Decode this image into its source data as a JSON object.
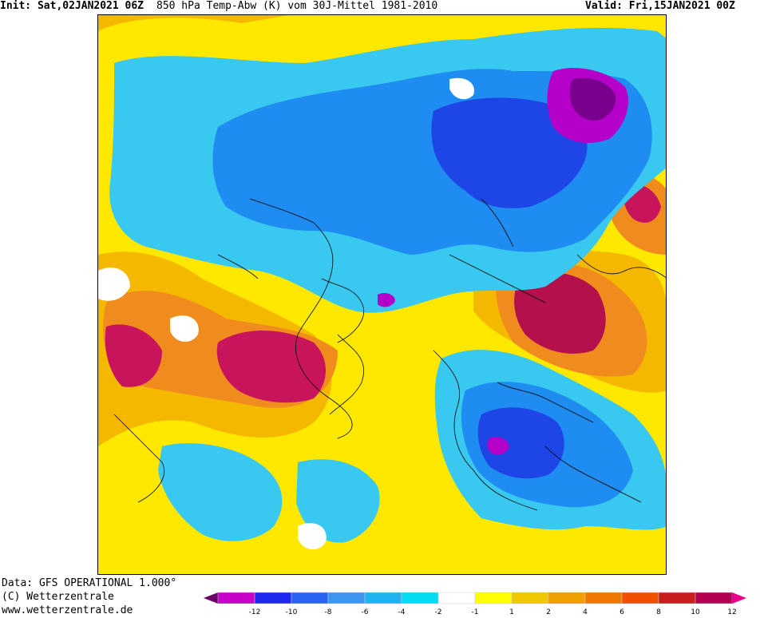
{
  "header": {
    "init": "Init: Sat,02JAN2021 06Z",
    "title": "850 hPa Temp-Abw (K) vom 30J-Mittel 1981-2010",
    "valid": "Valid: Fri,15JAN2021 00Z"
  },
  "credits": {
    "data_line": "Data: GFS OPERATIONAL 1.000°",
    "copyright_line": "(C) Wetterzentrale",
    "url_line": "www.wetterzentrale.de"
  },
  "legend": {
    "ticks": [
      "-12",
      "-10",
      "-8",
      "-6",
      "-4",
      "-2",
      "-1",
      "1",
      "2",
      "4",
      "6",
      "8",
      "10",
      "12"
    ],
    "colors": [
      "#6b0068",
      "#c800c8",
      "#1e28f0",
      "#2864f0",
      "#3c96f0",
      "#1eb4f0",
      "#00dcf0",
      "#ffffff",
      "#ffff00",
      "#f0c800",
      "#f0a000",
      "#f07800",
      "#f05000",
      "#c81e1e",
      "#b40050",
      "#e6008c"
    ]
  },
  "map": {
    "field": "850 hPa temperature anomaly",
    "unit": "K",
    "warm_color": "#c8145a",
    "cold_color": "#2828c8"
  }
}
